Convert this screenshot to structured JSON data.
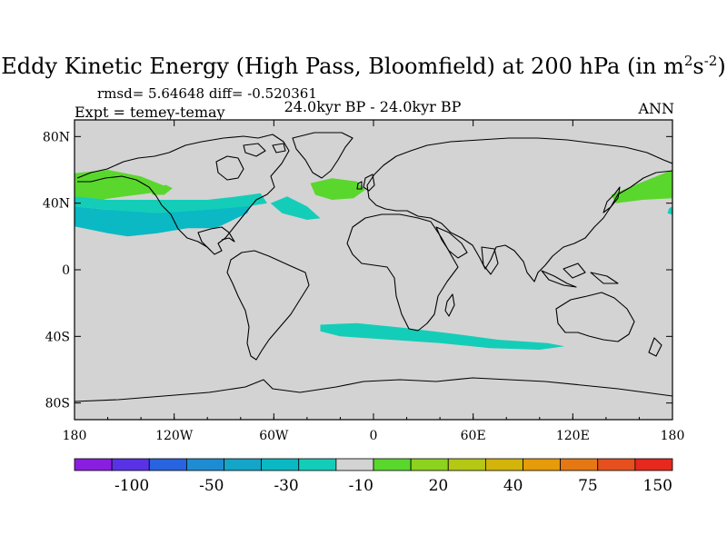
{
  "title": {
    "main": "Eddy Kinetic Energy (High Pass, Bloomfield) at 200 hPa (in m",
    "sup1": "2",
    "mid": "s",
    "sup2": "-2",
    "end": ")"
  },
  "stats": "rmsd= 5.64648 diff= -0.520361",
  "expt": "Expt = temey-temay",
  "center_label": "24.0kyr BP - 24.0kyr BP",
  "season": "ANN",
  "chart_data": {
    "type": "heatmap",
    "projection": "cylindrical-equidistant",
    "xlim": [
      -180,
      180
    ],
    "ylim": [
      -90,
      90
    ],
    "xticks": [
      {
        "value": -180,
        "label": "180"
      },
      {
        "value": -120,
        "label": "120W"
      },
      {
        "value": -60,
        "label": "60W"
      },
      {
        "value": 0,
        "label": "0"
      },
      {
        "value": 60,
        "label": "60E"
      },
      {
        "value": 120,
        "label": "120E"
      },
      {
        "value": 180,
        "label": "180"
      }
    ],
    "yticks": [
      {
        "value": 80,
        "label": "80N"
      },
      {
        "value": 40,
        "label": "40N"
      },
      {
        "value": 0,
        "label": "0"
      },
      {
        "value": -40,
        "label": "40S"
      },
      {
        "value": -80,
        "label": "80S"
      }
    ],
    "background_color": "#d3d3d3",
    "colorbar": {
      "colors": [
        "#8a1ee0",
        "#5a32e6",
        "#2864e0",
        "#1e8cd2",
        "#14a5c8",
        "#0ab9c3",
        "#14cdb9",
        "#d3d3d3",
        "#5ad72d",
        "#8cd21e",
        "#b4c814",
        "#d2b40a",
        "#e69b0a",
        "#e67814",
        "#e6501e",
        "#e6281e"
      ],
      "labels": [
        {
          "boundary": 2,
          "text": "-100"
        },
        {
          "boundary": 4,
          "text": "-50"
        },
        {
          "boundary": 6,
          "text": "-30"
        },
        {
          "boundary": 8,
          "text": "-10"
        },
        {
          "boundary": 10,
          "text": "20"
        },
        {
          "boundary": 12,
          "text": "40"
        },
        {
          "boundary": 14,
          "text": "75"
        },
        {
          "boundary": 16,
          "text": "150"
        }
      ]
    },
    "regions": [
      {
        "name": "north-pacific-positive",
        "color": "#5ad72d",
        "points": [
          [
            -180,
            58
          ],
          [
            -160,
            60
          ],
          [
            -140,
            56
          ],
          [
            -125,
            50
          ],
          [
            -135,
            46
          ],
          [
            -150,
            44
          ],
          [
            -165,
            42
          ],
          [
            -180,
            41
          ]
        ]
      },
      {
        "name": "north-pacific-positive-small",
        "color": "#5ad72d",
        "points": [
          [
            -135,
            48
          ],
          [
            -125,
            51
          ],
          [
            -121,
            49
          ],
          [
            -126,
            45
          ],
          [
            -133,
            45
          ]
        ]
      },
      {
        "name": "north-pacific-negative-outer",
        "color": "#0ab9c3",
        "points": [
          [
            -180,
            38
          ],
          [
            -160,
            36
          ],
          [
            -140,
            37
          ],
          [
            -118,
            38
          ],
          [
            -95,
            39
          ],
          [
            -80,
            40
          ],
          [
            -72,
            42
          ],
          [
            -76,
            34
          ],
          [
            -95,
            25
          ],
          [
            -112,
            25
          ],
          [
            -130,
            22
          ],
          [
            -148,
            20
          ],
          [
            -160,
            22
          ],
          [
            -180,
            26
          ]
        ]
      },
      {
        "name": "north-pacific-negative-inner",
        "color": "#14cdb9",
        "points": [
          [
            -180,
            44
          ],
          [
            -160,
            42
          ],
          [
            -140,
            42
          ],
          [
            -120,
            42
          ],
          [
            -100,
            42
          ],
          [
            -82,
            44
          ],
          [
            -68,
            46
          ],
          [
            -64,
            40
          ],
          [
            -76,
            38
          ],
          [
            -100,
            36
          ],
          [
            -130,
            34
          ],
          [
            -160,
            36
          ],
          [
            -180,
            38
          ]
        ]
      },
      {
        "name": "north-atlantic-negative",
        "color": "#14cdb9",
        "points": [
          [
            -62,
            40
          ],
          [
            -52,
            44
          ],
          [
            -40,
            38
          ],
          [
            -32,
            31
          ],
          [
            -40,
            30
          ],
          [
            -55,
            34
          ]
        ]
      },
      {
        "name": "north-atlantic-positive",
        "color": "#5ad72d",
        "points": [
          [
            -38,
            52
          ],
          [
            -25,
            55
          ],
          [
            -10,
            53
          ],
          [
            -5,
            48
          ],
          [
            -12,
            43
          ],
          [
            -25,
            42
          ],
          [
            -35,
            45
          ]
        ]
      },
      {
        "name": "north-pacific-west-positive",
        "color": "#5ad72d",
        "points": [
          [
            143,
            45
          ],
          [
            160,
            52
          ],
          [
            180,
            60
          ],
          [
            180,
            43
          ],
          [
            162,
            42
          ],
          [
            146,
            40
          ]
        ]
      },
      {
        "name": "pacific-edge-negative",
        "color": "#14cdb9",
        "points": [
          [
            178,
            37
          ],
          [
            180,
            38
          ],
          [
            180,
            33
          ],
          [
            177,
            34
          ]
        ]
      },
      {
        "name": "southern-ocean-negative",
        "color": "#14cdb9",
        "points": [
          [
            -32,
            -33
          ],
          [
            -10,
            -32
          ],
          [
            20,
            -35
          ],
          [
            45,
            -38
          ],
          [
            75,
            -42
          ],
          [
            105,
            -44
          ],
          [
            115,
            -46
          ],
          [
            100,
            -48
          ],
          [
            70,
            -47
          ],
          [
            40,
            -44
          ],
          [
            10,
            -42
          ],
          [
            -20,
            -40
          ],
          [
            -32,
            -37
          ]
        ]
      }
    ]
  }
}
